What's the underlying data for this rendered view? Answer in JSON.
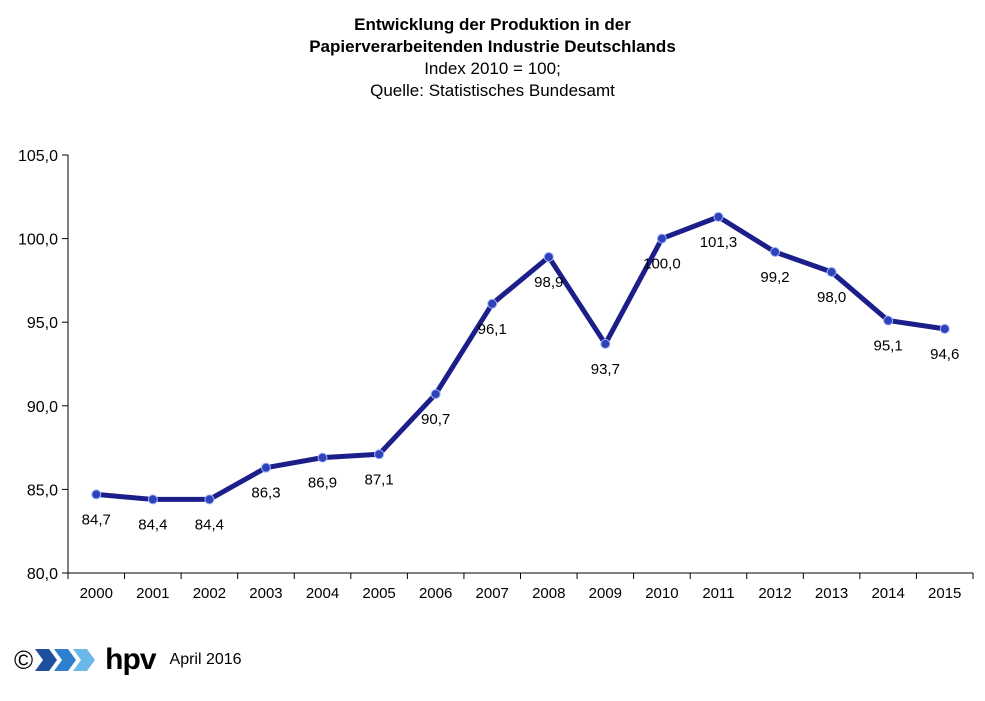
{
  "chart_data": {
    "type": "line",
    "title": "Entwicklung der Produktion in der",
    "title_line2": "Papierverarbeitenden Industrie Deutschlands",
    "subtitle": "Index 2010 = 100;",
    "source": "Quelle: Statistisches Bundesamt",
    "xlabel": "",
    "ylabel": "",
    "categories": [
      "2000",
      "2001",
      "2002",
      "2003",
      "2004",
      "2005",
      "2006",
      "2007",
      "2008",
      "2009",
      "2010",
      "2011",
      "2012",
      "2013",
      "2014",
      "2015"
    ],
    "series": [
      {
        "values": [
          84.7,
          84.4,
          84.4,
          86.3,
          86.9,
          87.1,
          90.7,
          96.1,
          98.9,
          93.7,
          100.0,
          101.3,
          99.2,
          98.0,
          95.1,
          94.6
        ],
        "labels": [
          "84,7",
          "84,4",
          "84,4",
          "86,3",
          "86,9",
          "87,1",
          "90,7",
          "96,1",
          "98,9",
          "93,7",
          "100,0",
          "101,3",
          "99,2",
          "98,0",
          "95,1",
          "94,6"
        ],
        "color": "#1c1f8a"
      }
    ],
    "ylim": [
      80,
      105
    ],
    "yticks": [
      "80,0",
      "85,0",
      "90,0",
      "95,0",
      "100,0",
      "105,0"
    ],
    "grid": false,
    "legend": "none"
  },
  "footer": {
    "copyright": "©",
    "logo_text": "hpv",
    "logo_icon": "chevron-logo-icon",
    "date": "April 2016",
    "logo_colors": [
      "#1e4f9e",
      "#2f7fd0",
      "#6cb8ea"
    ]
  }
}
